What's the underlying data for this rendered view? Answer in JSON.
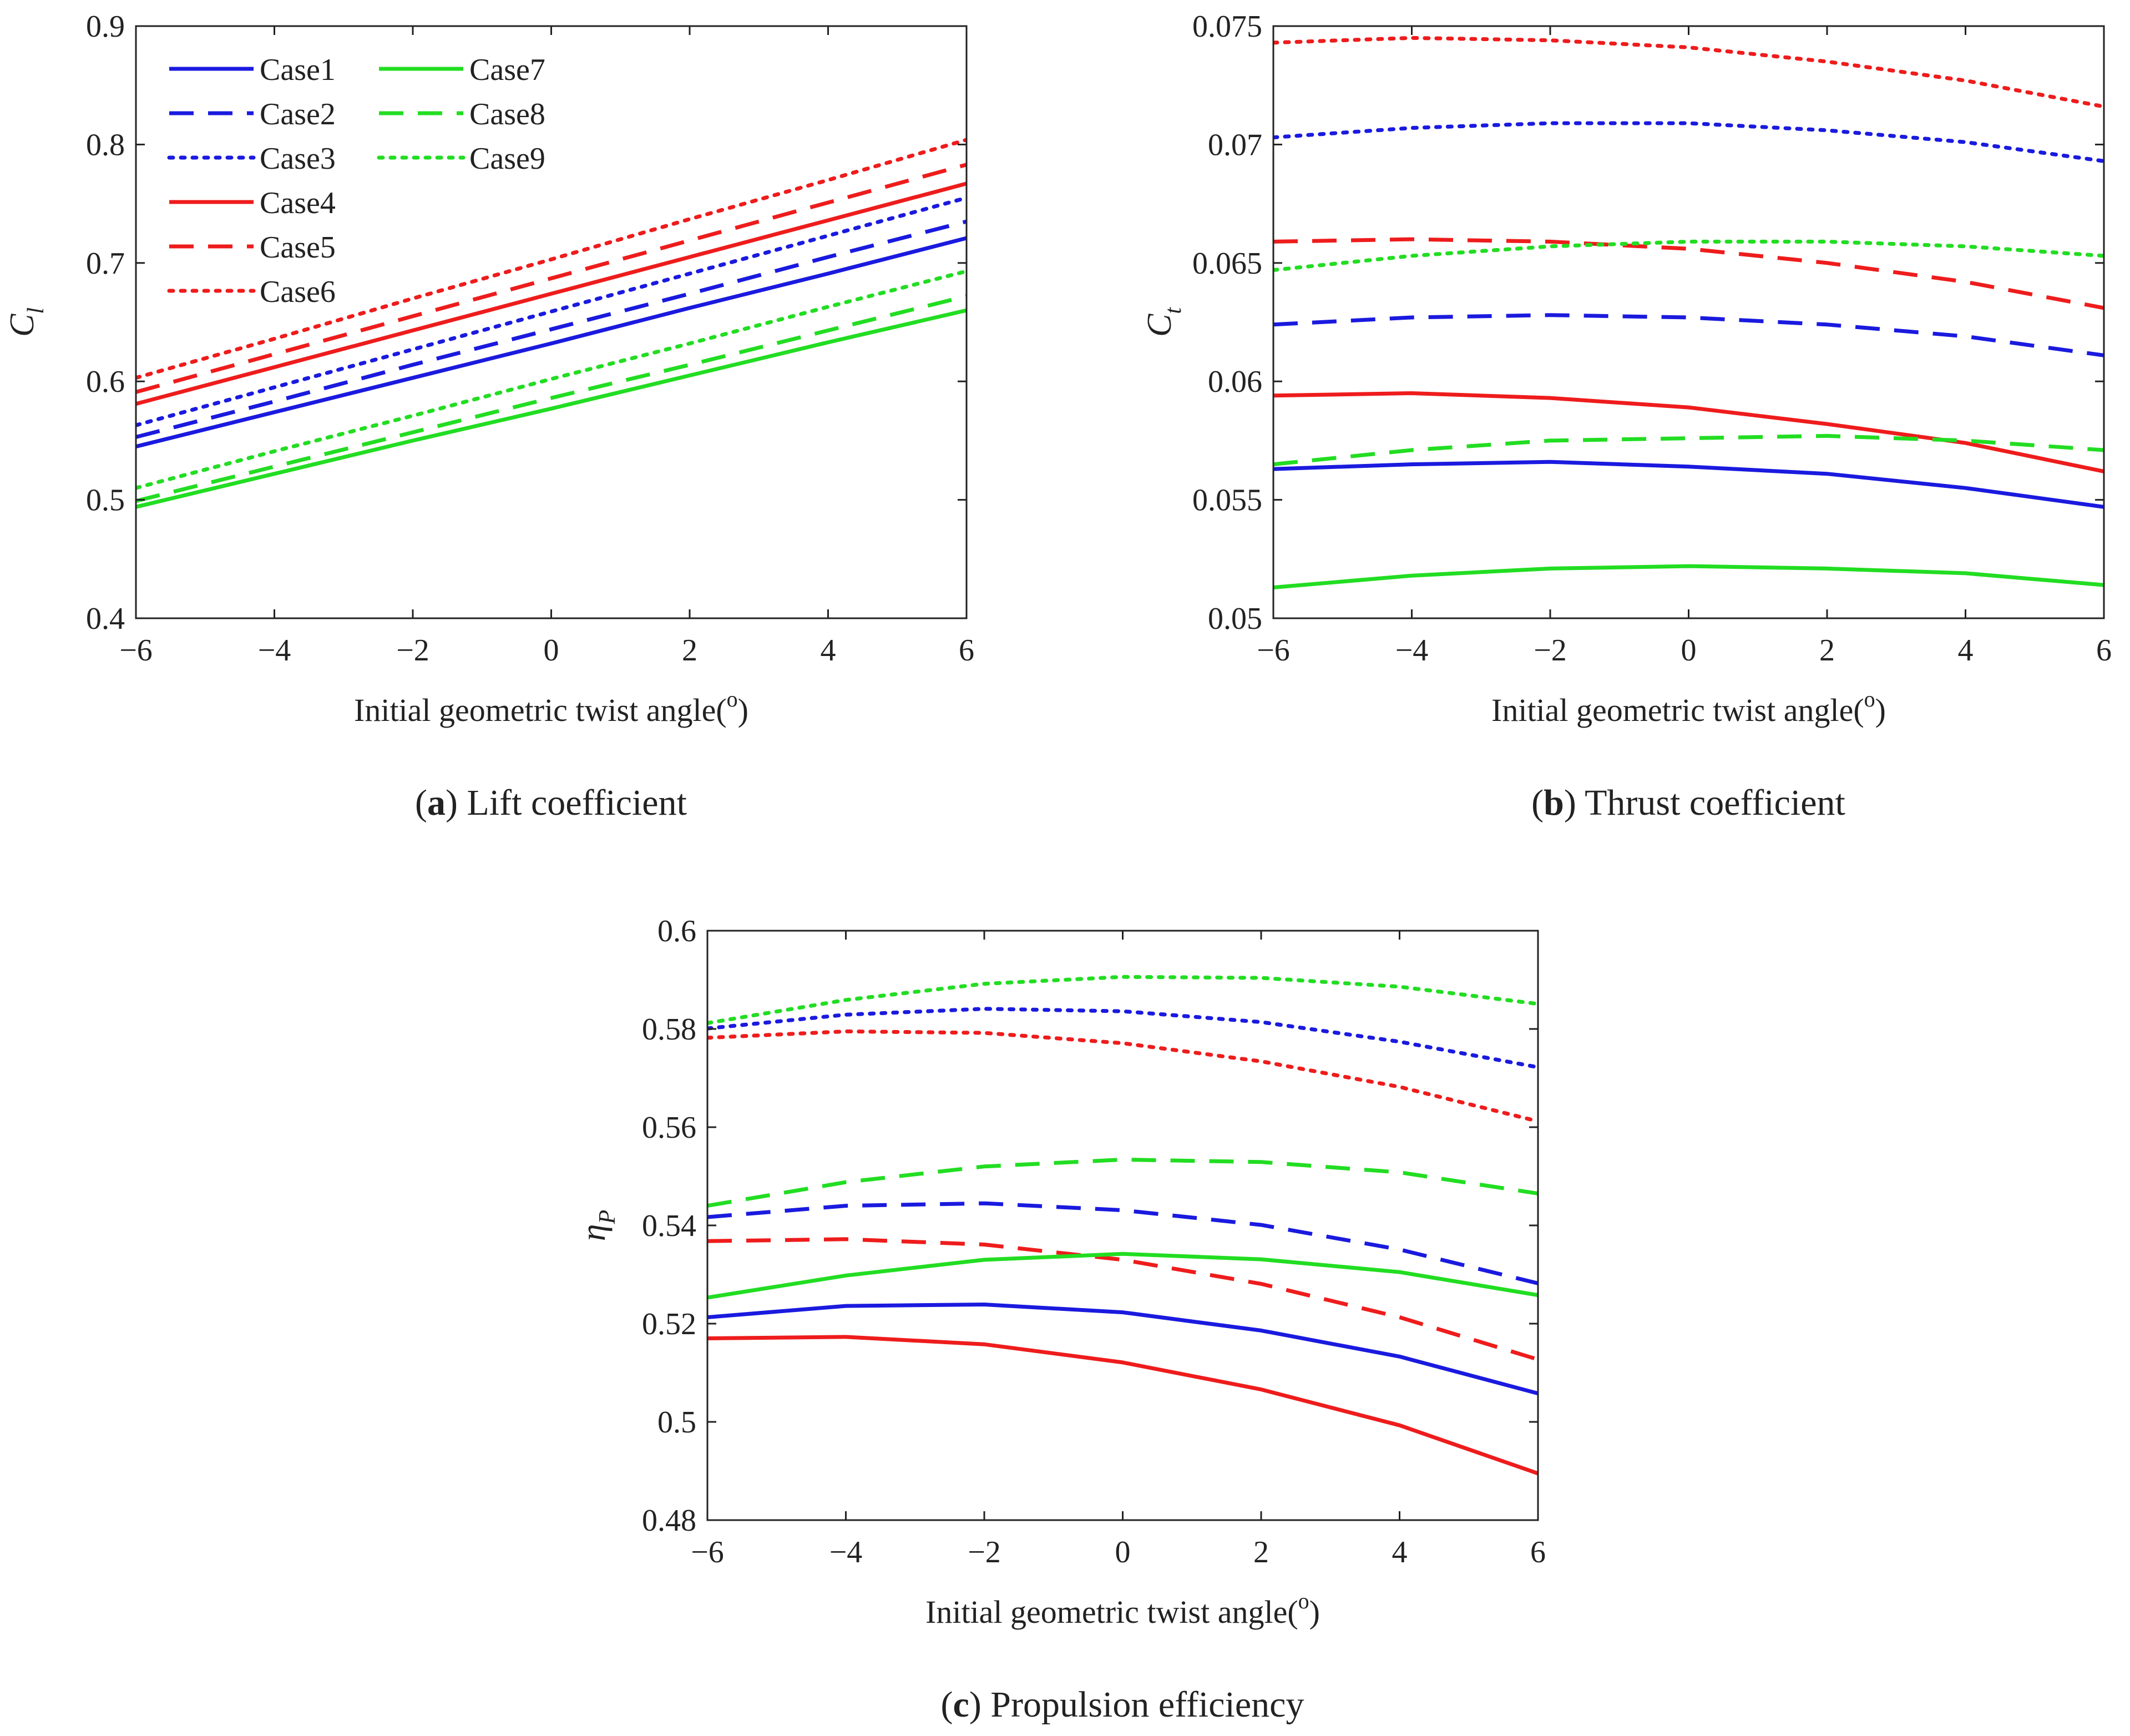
{
  "chart_data": [
    {
      "panel_id": "a",
      "caption_letter": "a",
      "caption_text": "Lift coefficient",
      "type": "line",
      "xlabel": "Initial geometric twist angle(",
      "xlabel_sup": "o",
      "xlabel_close": ")",
      "ylabel": "C",
      "ylabel_sub": "l",
      "xlim": [
        -6,
        6
      ],
      "ylim": [
        0.4,
        0.9
      ],
      "x_ticks": [
        -6,
        -4,
        -2,
        0,
        2,
        4,
        6
      ],
      "x_tick_labels": [
        "−6",
        "−4",
        "−2",
        "0",
        "2",
        "4",
        "6"
      ],
      "y_ticks": [
        0.4,
        0.5,
        0.6,
        0.7,
        0.8,
        0.9
      ],
      "y_tick_labels": [
        "0.4",
        "0.5",
        "0.6",
        "0.7",
        "0.8",
        "0.9"
      ],
      "grid": false,
      "legend_position": "top-left",
      "x": [
        -6,
        -4,
        -2,
        0,
        2,
        4,
        6
      ],
      "series": [
        {
          "name": "Case1",
          "color": "#1a1adf",
          "style": "solid",
          "values": [
            0.545,
            0.574,
            0.603,
            0.632,
            0.662,
            0.691,
            0.721
          ]
        },
        {
          "name": "Case2",
          "color": "#1a1adf",
          "style": "dashed",
          "values": [
            0.553,
            0.583,
            0.614,
            0.644,
            0.674,
            0.705,
            0.735
          ]
        },
        {
          "name": "Case3",
          "color": "#1a1adf",
          "style": "dotted",
          "values": [
            0.563,
            0.595,
            0.627,
            0.659,
            0.691,
            0.723,
            0.755
          ]
        },
        {
          "name": "Case4",
          "color": "#ee1c1c",
          "style": "solid",
          "values": [
            0.581,
            0.612,
            0.643,
            0.674,
            0.705,
            0.736,
            0.767
          ]
        },
        {
          "name": "Case5",
          "color": "#ee1c1c",
          "style": "dashed",
          "values": [
            0.591,
            0.623,
            0.655,
            0.687,
            0.719,
            0.751,
            0.783
          ]
        },
        {
          "name": "Case6",
          "color": "#ee1c1c",
          "style": "dotted",
          "values": [
            0.603,
            0.636,
            0.67,
            0.703,
            0.737,
            0.77,
            0.804
          ]
        },
        {
          "name": "Case7",
          "color": "#22dd22",
          "style": "solid",
          "values": [
            0.494,
            0.522,
            0.55,
            0.577,
            0.605,
            0.633,
            0.66
          ]
        },
        {
          "name": "Case8",
          "color": "#22dd22",
          "style": "dashed",
          "values": [
            0.499,
            0.528,
            0.557,
            0.586,
            0.614,
            0.643,
            0.672
          ]
        },
        {
          "name": "Case9",
          "color": "#22dd22",
          "style": "dotted",
          "values": [
            0.51,
            0.541,
            0.571,
            0.602,
            0.632,
            0.663,
            0.693
          ]
        }
      ]
    },
    {
      "panel_id": "b",
      "caption_letter": "b",
      "caption_text": "Thrust coefficient",
      "type": "line",
      "xlabel": "Initial geometric twist angle(",
      "xlabel_sup": "o",
      "xlabel_close": ")",
      "ylabel": "C",
      "ylabel_sub": "t",
      "xlim": [
        -6,
        6
      ],
      "ylim": [
        0.05,
        0.075
      ],
      "x_ticks": [
        -6,
        -4,
        -2,
        0,
        2,
        4,
        6
      ],
      "x_tick_labels": [
        "−6",
        "−4",
        "−2",
        "0",
        "2",
        "4",
        "6"
      ],
      "y_ticks": [
        0.05,
        0.055,
        0.06,
        0.065,
        0.07,
        0.075
      ],
      "y_tick_labels": [
        "0.05",
        "0.055",
        "0.06",
        "0.065",
        "0.07",
        "0.075"
      ],
      "grid": false,
      "x": [
        -6,
        -4,
        -2,
        0,
        2,
        4,
        6
      ],
      "series": [
        {
          "name": "Case1",
          "color": "#1a1adf",
          "style": "solid",
          "values": [
            0.0563,
            0.0565,
            0.0566,
            0.0564,
            0.0561,
            0.0555,
            0.0547
          ]
        },
        {
          "name": "Case2",
          "color": "#1a1adf",
          "style": "dashed",
          "values": [
            0.0624,
            0.0627,
            0.0628,
            0.0627,
            0.0624,
            0.0619,
            0.0611
          ]
        },
        {
          "name": "Case3",
          "color": "#1a1adf",
          "style": "dotted",
          "values": [
            0.0703,
            0.0707,
            0.0709,
            0.0709,
            0.0706,
            0.0701,
            0.0693
          ]
        },
        {
          "name": "Case4",
          "color": "#ee1c1c",
          "style": "solid",
          "values": [
            0.0594,
            0.0595,
            0.0593,
            0.0589,
            0.0582,
            0.0574,
            0.0562
          ]
        },
        {
          "name": "Case5",
          "color": "#ee1c1c",
          "style": "dashed",
          "values": [
            0.0659,
            0.066,
            0.0659,
            0.0656,
            0.065,
            0.0642,
            0.0631
          ]
        },
        {
          "name": "Case6",
          "color": "#ee1c1c",
          "style": "dotted",
          "values": [
            0.0743,
            0.0745,
            0.0744,
            0.0741,
            0.0735,
            0.0727,
            0.0716
          ]
        },
        {
          "name": "Case7",
          "color": "#22dd22",
          "style": "solid",
          "values": [
            0.0513,
            0.0518,
            0.0521,
            0.0522,
            0.0521,
            0.0519,
            0.0514
          ]
        },
        {
          "name": "Case8",
          "color": "#22dd22",
          "style": "dashed",
          "values": [
            0.0565,
            0.0571,
            0.0575,
            0.0576,
            0.0577,
            0.0575,
            0.0571
          ]
        },
        {
          "name": "Case9",
          "color": "#22dd22",
          "style": "dotted",
          "values": [
            0.0647,
            0.0653,
            0.0657,
            0.0659,
            0.0659,
            0.0657,
            0.0653
          ]
        }
      ]
    },
    {
      "panel_id": "c",
      "caption_letter": "c",
      "caption_text": "Propulsion efficiency",
      "type": "line",
      "xlabel": "Initial geometric twist angle(",
      "xlabel_sup": "o",
      "xlabel_close": ")",
      "ylabel": "η",
      "ylabel_sub": "P",
      "xlim": [
        -6,
        6
      ],
      "ylim": [
        0.48,
        0.6
      ],
      "x_ticks": [
        -6,
        -4,
        -2,
        0,
        2,
        4,
        6
      ],
      "x_tick_labels": [
        "−6",
        "−4",
        "−2",
        "0",
        "2",
        "4",
        "6"
      ],
      "y_ticks": [
        0.48,
        0.5,
        0.52,
        0.54,
        0.56,
        0.58,
        0.6
      ],
      "y_tick_labels": [
        "0.48",
        "0.5",
        "0.52",
        "0.54",
        "0.56",
        "0.58",
        "0.6"
      ],
      "grid": false,
      "x": [
        -6,
        -4,
        -2,
        0,
        2,
        4,
        6
      ],
      "series": [
        {
          "name": "Case1",
          "color": "#1a1adf",
          "style": "solid",
          "values": [
            0.5213,
            0.5236,
            0.5239,
            0.5223,
            0.5186,
            0.5133,
            0.5058
          ]
        },
        {
          "name": "Case2",
          "color": "#1a1adf",
          "style": "dashed",
          "values": [
            0.5417,
            0.544,
            0.5445,
            0.5431,
            0.5401,
            0.5351,
            0.5282
          ]
        },
        {
          "name": "Case3",
          "color": "#1a1adf",
          "style": "dotted",
          "values": [
            0.5801,
            0.5829,
            0.5841,
            0.5836,
            0.5814,
            0.5774,
            0.5722
          ]
        },
        {
          "name": "Case4",
          "color": "#ee1c1c",
          "style": "solid",
          "values": [
            0.517,
            0.5173,
            0.5158,
            0.5121,
            0.5066,
            0.4993,
            0.4895
          ]
        },
        {
          "name": "Case5",
          "color": "#ee1c1c",
          "style": "dashed",
          "values": [
            0.5368,
            0.5372,
            0.5361,
            0.533,
            0.5281,
            0.5213,
            0.5127
          ]
        },
        {
          "name": "Case6",
          "color": "#ee1c1c",
          "style": "dotted",
          "values": [
            0.5782,
            0.5795,
            0.5792,
            0.5771,
            0.5734,
            0.5682,
            0.5612
          ]
        },
        {
          "name": "Case7",
          "color": "#22dd22",
          "style": "solid",
          "values": [
            0.5253,
            0.5298,
            0.533,
            0.5342,
            0.5331,
            0.5305,
            0.5258
          ]
        },
        {
          "name": "Case8",
          "color": "#22dd22",
          "style": "dashed",
          "values": [
            0.544,
            0.5488,
            0.552,
            0.5534,
            0.5529,
            0.5508,
            0.5465
          ]
        },
        {
          "name": "Case9",
          "color": "#22dd22",
          "style": "dotted",
          "values": [
            0.5812,
            0.5859,
            0.5892,
            0.5906,
            0.5904,
            0.5886,
            0.5851
          ]
        }
      ]
    }
  ]
}
